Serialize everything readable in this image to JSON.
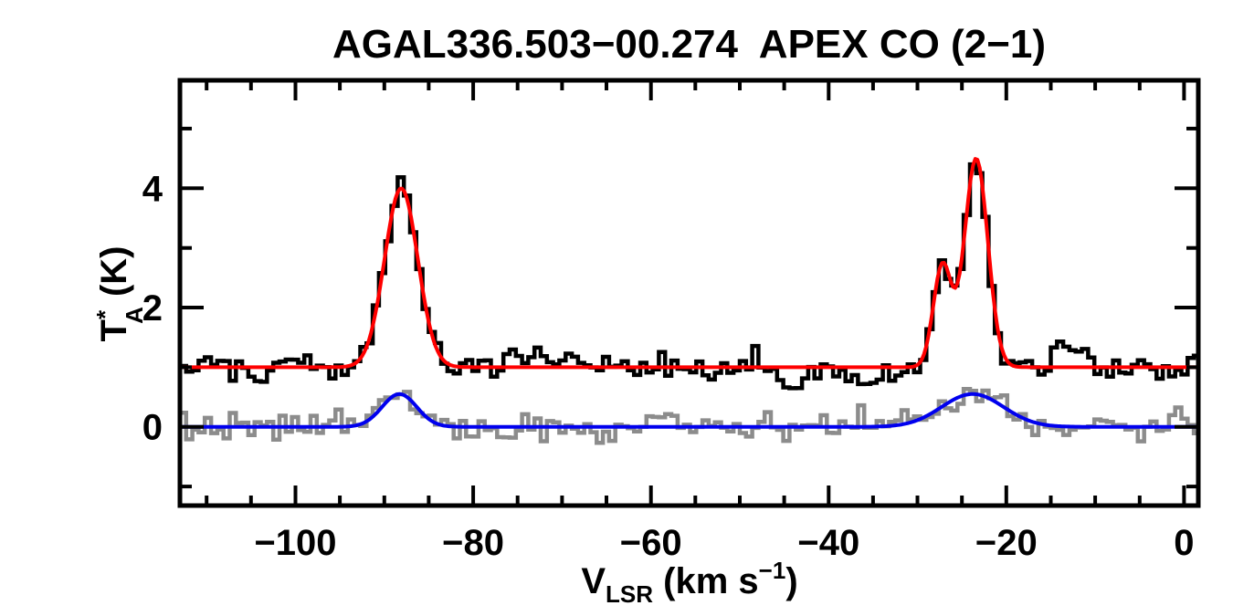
{
  "title": "AGAL336.503−00.274  APEX CO (2−1)",
  "axes": {
    "xlabel_parts": {
      "main": "V",
      "sub": "LSR",
      "mid": " (km s",
      "sup": "−1",
      "close": ")"
    },
    "ylabel_parts": {
      "main": "T",
      "sup": "*",
      "sub": "A",
      "rest": " (K)"
    }
  },
  "colors": {
    "background": "#ffffff",
    "frame": "#000000",
    "observed_spectrum": "#000000",
    "reference_spectrum": "#8c8c8c",
    "fit_observed": "#ff0000",
    "fit_reference": "#0000ee"
  },
  "chart_data": {
    "type": "line",
    "title": "AGAL336.503−00.274  APEX CO (2−1)",
    "xlabel": "V_LSR (km s^-1)",
    "ylabel": "T_A^* (K)",
    "xlim": [
      -113.0,
      1.6
    ],
    "ylim": [
      -1.32,
      5.81
    ],
    "x_major_ticks": [
      -100,
      -80,
      -60,
      -40,
      -20,
      0
    ],
    "x_tick_labels": [
      "−100",
      "−80",
      "−60",
      "−40",
      "−20",
      "0"
    ],
    "x_minor_step": 5,
    "y_major_ticks": [
      0,
      2,
      4
    ],
    "y_tick_labels": [
      "0",
      "2",
      "4"
    ],
    "y_minor_ticks": [
      -1,
      1,
      3,
      5
    ],
    "grid": false,
    "legend": null,
    "bin_width_kms": 0.7,
    "series": [
      {
        "name": "observed-spectrum",
        "style": "histogram",
        "color_key": "observed_spectrum",
        "baseline": 1.0,
        "noise_sigma": 0.11,
        "seed": 101,
        "gaussians": [
          {
            "center": -88.1,
            "amp": 3.0,
            "fwhm": 4.4
          },
          {
            "center": -27.2,
            "amp": 1.7,
            "fwhm": 2.4
          },
          {
            "center": -23.4,
            "amp": 3.5,
            "fwhm": 3.1
          }
        ],
        "bumps": [
          {
            "center": -72.5,
            "amp": 0.22,
            "fwhm": 6.0
          },
          {
            "center": -44.8,
            "amp": -0.42,
            "fwhm": 1.8
          },
          {
            "center": -37.0,
            "amp": -0.12,
            "fwhm": 8.0
          },
          {
            "center": -12.8,
            "amp": 0.3,
            "fwhm": 3.5
          }
        ]
      },
      {
        "name": "reference-spectrum",
        "style": "histogram",
        "color_key": "reference_spectrum",
        "baseline": 0.0,
        "noise_sigma": 0.12,
        "seed": 202,
        "gaussians": [
          {
            "center": -88.3,
            "amp": 0.55,
            "fwhm": 4.6
          },
          {
            "center": -23.8,
            "amp": 0.55,
            "fwhm": 8.2
          }
        ],
        "bumps": [
          {
            "center": -59.0,
            "amp": 0.13,
            "fwhm": 6.0
          }
        ]
      },
      {
        "name": "gaussian-fit-observed",
        "style": "curve",
        "color_key": "fit_observed",
        "baseline": 1.0,
        "gaussians": [
          {
            "center": -88.1,
            "amp": 3.0,
            "fwhm": 4.4
          },
          {
            "center": -27.2,
            "amp": 1.7,
            "fwhm": 2.4
          },
          {
            "center": -23.4,
            "amp": 3.5,
            "fwhm": 3.1
          }
        ],
        "bumps": []
      },
      {
        "name": "gaussian-fit-reference",
        "style": "curve",
        "color_key": "fit_reference",
        "baseline": 0.0,
        "gaussians": [
          {
            "center": -88.3,
            "amp": 0.55,
            "fwhm": 4.6
          },
          {
            "center": -23.8,
            "amp": 0.55,
            "fwhm": 8.2
          }
        ],
        "bumps": []
      }
    ]
  }
}
